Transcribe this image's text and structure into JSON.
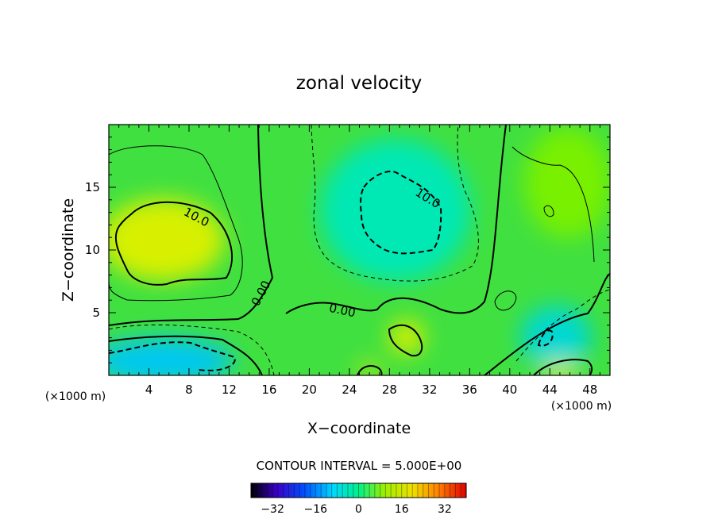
{
  "chart_data": {
    "type": "heatmap",
    "title": "zonal velocity",
    "xlabel": "X−coordinate",
    "ylabel": "Z−coordinate",
    "x_unit": "(×1000 m)",
    "y_unit": "(×1000 m)",
    "xlim": [
      0,
      50
    ],
    "ylim": [
      0,
      20
    ],
    "x_ticks": [
      "4",
      "8",
      "12",
      "16",
      "20",
      "24",
      "28",
      "32",
      "36",
      "40",
      "44",
      "48"
    ],
    "y_ticks": [
      "5",
      "10",
      "15"
    ],
    "contour_interval_text": "CONTOUR INTERVAL = 5.000E+00",
    "contour_labels": [
      "10.0",
      "0.00",
      "0.00",
      "10.0"
    ],
    "colorbar": {
      "range": [
        -40,
        40
      ],
      "ticks": [
        "−32",
        "−16",
        "0",
        "16",
        "32"
      ]
    },
    "field_features": [
      {
        "name": "jet-max-left",
        "x": 5,
        "z": 11,
        "value": 14
      },
      {
        "name": "jet-min-center",
        "x": 29,
        "z": 13,
        "value": -12
      },
      {
        "name": "surface-min-left",
        "x": 5,
        "z": 1,
        "value": -12
      },
      {
        "name": "surface-min-right",
        "x": 43,
        "z": 3,
        "value": -10
      },
      {
        "name": "surface-max-center",
        "x": 29,
        "z": 2.5,
        "value": 14
      },
      {
        "name": "surface-max-right",
        "x": 45,
        "z": 0.5,
        "value": 12
      }
    ]
  }
}
